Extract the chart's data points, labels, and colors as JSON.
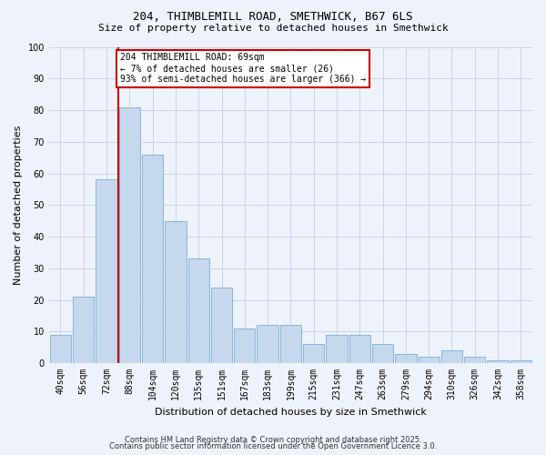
{
  "title_line1": "204, THIMBLEMILL ROAD, SMETHWICK, B67 6LS",
  "title_line2": "Size of property relative to detached houses in Smethwick",
  "xlabel": "Distribution of detached houses by size in Smethwick",
  "ylabel": "Number of detached properties",
  "categories": [
    "40sqm",
    "56sqm",
    "72sqm",
    "88sqm",
    "104sqm",
    "120sqm",
    "135sqm",
    "151sqm",
    "167sqm",
    "183sqm",
    "199sqm",
    "215sqm",
    "231sqm",
    "247sqm",
    "263sqm",
    "279sqm",
    "294sqm",
    "310sqm",
    "326sqm",
    "342sqm",
    "358sqm"
  ],
  "values": [
    9,
    21,
    58,
    81,
    66,
    45,
    33,
    24,
    11,
    12,
    12,
    6,
    9,
    9,
    6,
    3,
    2,
    4,
    2,
    1,
    1
  ],
  "bar_color": "#c5d8ee",
  "bar_edge_color": "#7aaed4",
  "background_color": "#eef2fb",
  "grid_color": "#c8d4e8",
  "red_line_bar_index": 2,
  "red_line_color": "#cc0000",
  "annotation_text": "204 THIMBLEMILL ROAD: 69sqm\n← 7% of detached houses are smaller (26)\n93% of semi-detached houses are larger (366) →",
  "annotation_box_facecolor": "#ffffff",
  "annotation_box_edgecolor": "#cc0000",
  "ylim": [
    0,
    100
  ],
  "yticks": [
    0,
    10,
    20,
    30,
    40,
    50,
    60,
    70,
    80,
    90,
    100
  ],
  "footer_line1": "Contains HM Land Registry data © Crown copyright and database right 2025.",
  "footer_line2": "Contains public sector information licensed under the Open Government Licence 3.0."
}
